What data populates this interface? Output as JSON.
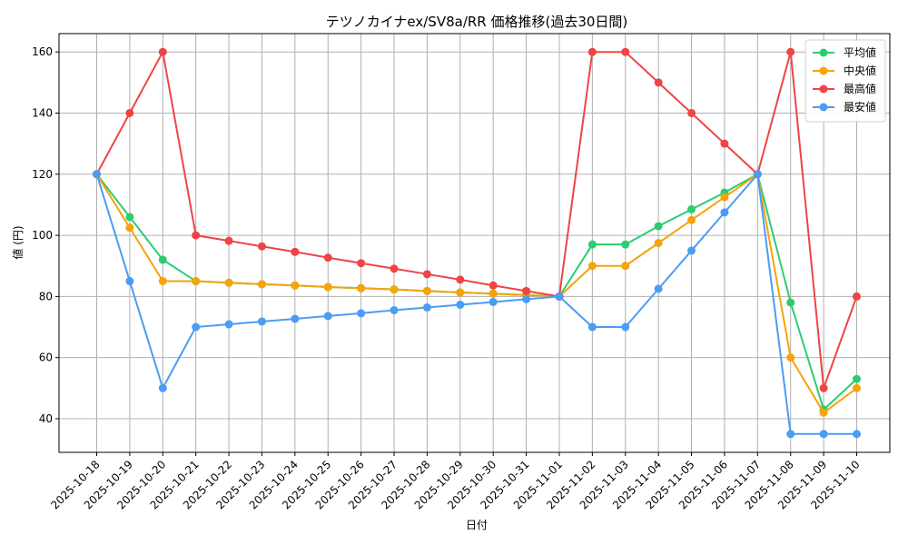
{
  "chart_data": {
    "type": "line",
    "title": "テツノカイナex/SV8a/RR 価格推移(過去30日間)",
    "xlabel": "日付",
    "ylabel": "値 (円)",
    "ylim": [
      29,
      166
    ],
    "yticks": [
      40,
      60,
      80,
      100,
      120,
      140,
      160
    ],
    "grid": true,
    "legend_position": "top-right",
    "categories": [
      "2025-10-18",
      "2025-10-19",
      "2025-10-20",
      "2025-10-21",
      "2025-10-22",
      "2025-10-23",
      "2025-10-24",
      "2025-10-25",
      "2025-10-26",
      "2025-10-27",
      "2025-10-28",
      "2025-10-29",
      "2025-10-30",
      "2025-10-31",
      "2025-11-01",
      "2025-11-02",
      "2025-11-03",
      "2025-11-04",
      "2025-11-05",
      "2025-11-06",
      "2025-11-07",
      "2025-11-08",
      "2025-11-09",
      "2025-11-10"
    ],
    "series": [
      {
        "name": "平均値",
        "color": "#2ecc71",
        "values": [
          120,
          106,
          92,
          85,
          84.5,
          84,
          83.6,
          83.1,
          82.7,
          82.3,
          81.8,
          81.3,
          80.9,
          80.5,
          80,
          97,
          97,
          103,
          108.5,
          114,
          120,
          78,
          43,
          53
        ]
      },
      {
        "name": "中央値",
        "color": "#f5a30a",
        "values": [
          120,
          102.5,
          85,
          85,
          84.5,
          84,
          83.6,
          83.1,
          82.7,
          82.3,
          81.8,
          81.3,
          80.9,
          80.5,
          80,
          90,
          90,
          97.5,
          105,
          112.5,
          120,
          60,
          42,
          50
        ]
      },
      {
        "name": "最高値",
        "color": "#ef4444",
        "values": [
          120,
          140,
          160,
          100,
          98.2,
          96.4,
          94.6,
          92.7,
          90.9,
          89.1,
          87.3,
          85.5,
          83.6,
          81.8,
          80,
          160,
          160,
          150,
          140,
          130,
          120,
          160,
          50,
          80
        ]
      },
      {
        "name": "最安値",
        "color": "#4a9cf5",
        "values": [
          120,
          85,
          50,
          70,
          70.9,
          71.8,
          72.7,
          73.6,
          74.5,
          75.5,
          76.4,
          77.3,
          78.2,
          79.1,
          80,
          70,
          70,
          82.5,
          95,
          107.5,
          120,
          35,
          35,
          35
        ]
      }
    ]
  }
}
